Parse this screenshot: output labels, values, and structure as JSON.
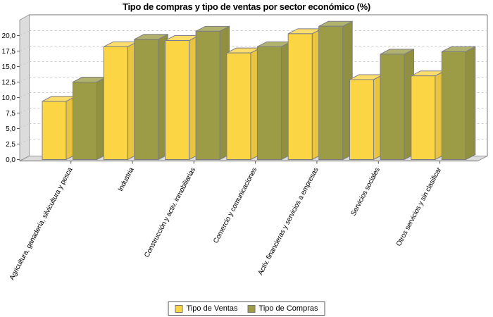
{
  "title": "Tipo de compras y tipo de ventas por sector económico (%)",
  "chart_data": {
    "type": "bar",
    "effect": "3d",
    "title": "Tipo de compras y tipo de ventas por sector económico (%)",
    "categories": [
      "Agricultura, ganadería, silvicultura y pesca",
      "Industria",
      "Construcción y activ. inmobiliarias",
      "Comercio y comunicaciones",
      "Activ. financieras y servicios a empresas",
      "Servicios sociales",
      "Otros servicios y sin clasificar"
    ],
    "series": [
      {
        "name": "Tipo de Ventas",
        "color": "#FCD544",
        "values": [
          9.4,
          18.2,
          19.2,
          17.2,
          20.3,
          12.9,
          13.5
        ]
      },
      {
        "name": "Tipo de Compras",
        "color": "#9C9C46",
        "values": [
          12.5,
          19.4,
          20.7,
          18.2,
          21.5,
          17.0,
          17.4
        ]
      }
    ],
    "xlabel": "",
    "ylabel": "",
    "ylim": [
      0,
      22.5
    ],
    "ytick_step": 2.5,
    "yticks": [
      "0,0",
      "2,5",
      "5,0",
      "7,5",
      "10,0",
      "12,5",
      "15,0",
      "17,5",
      "20,0"
    ],
    "grid": "horizontal-dashed",
    "legend_position": "bottom-center"
  },
  "palette": {
    "wall": "#DCDCDC",
    "wall_outline": "#9A9A9A",
    "gridline": "#CCCCCC",
    "box_border": "#777777",
    "bar_outline": "#7D7D85",
    "axis_tick": "#555555",
    "text": "#000000",
    "background": "#FFFFFF"
  }
}
